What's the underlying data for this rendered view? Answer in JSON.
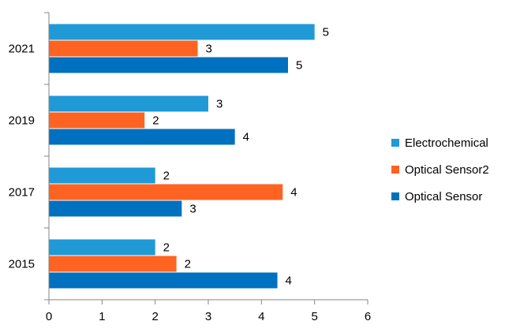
{
  "chart_data": {
    "type": "bar",
    "orientation": "horizontal",
    "categories": [
      "2015",
      "2017",
      "2019",
      "2021"
    ],
    "series": [
      {
        "name": "Electrochemical",
        "color": "#1f9ad6",
        "values": [
          2,
          2,
          3,
          5
        ],
        "labels": [
          "2",
          "2",
          "3",
          "5"
        ]
      },
      {
        "name": "Optical Sensor2",
        "color": "#ff6321",
        "values": [
          2.4,
          4.4,
          1.8,
          2.8
        ],
        "labels": [
          "2",
          "4",
          "2",
          "3"
        ]
      },
      {
        "name": "Optical Sensor",
        "color": "#0070c0",
        "values": [
          4.3,
          2.5,
          3.5,
          4.5
        ],
        "labels": [
          "4",
          "3",
          "4",
          "5"
        ]
      }
    ],
    "xlim": [
      0,
      6
    ],
    "xticks": [
      "0",
      "1",
      "2",
      "3",
      "4",
      "5",
      "6"
    ],
    "grid": false,
    "legend_position": "right"
  }
}
